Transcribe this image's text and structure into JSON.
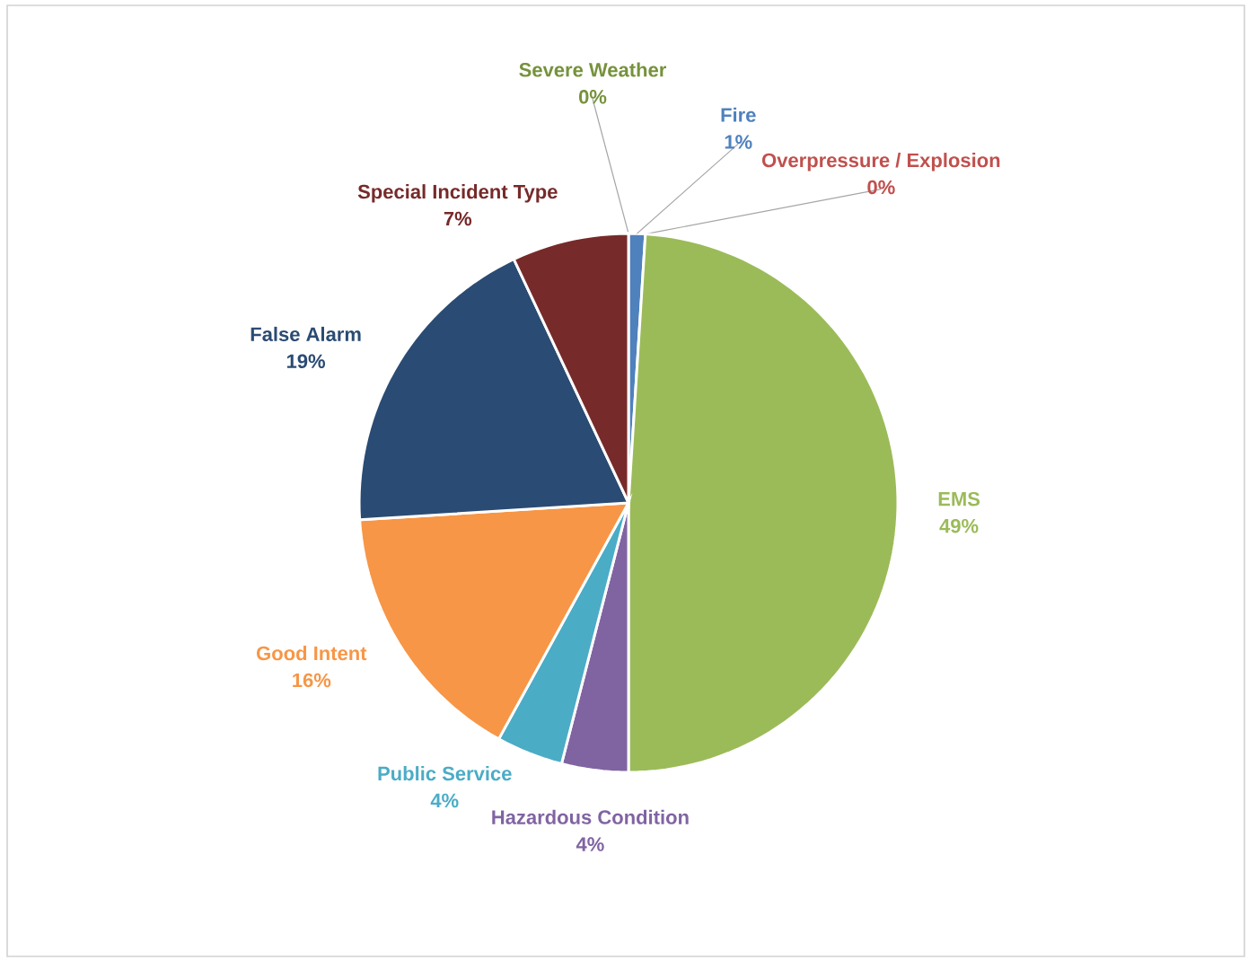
{
  "chart_data": {
    "type": "pie",
    "categories": [
      "Severe Weather",
      "Fire",
      "Overpressure / Explosion",
      "EMS",
      "Hazardous Condition",
      "Public Service",
      "Good Intent",
      "False Alarm",
      "Special Incident Type"
    ],
    "values": [
      0,
      1,
      0,
      49,
      4,
      4,
      16,
      19,
      7
    ],
    "colors": [
      "#76923c",
      "#4f81bd",
      "#c0504d",
      "#9bbb59",
      "#8064a2",
      "#4bacc6",
      "#f79646",
      "#2a4b73",
      "#772a2a"
    ],
    "value_labels": [
      "0%",
      "1%",
      "0%",
      "49%",
      "4%",
      "4%",
      "16%",
      "19%",
      "7%"
    ]
  }
}
